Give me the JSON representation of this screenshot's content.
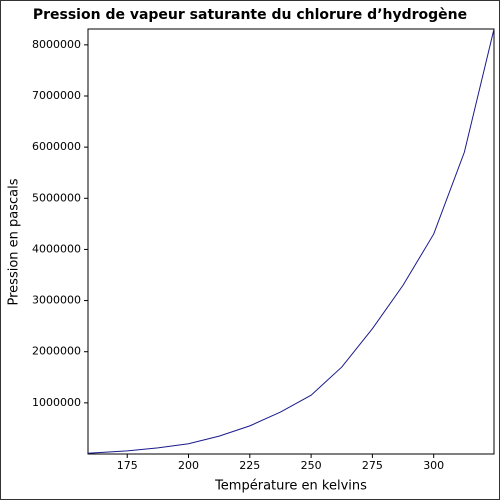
{
  "chart_data": {
    "type": "line",
    "title": "Pression de vapeur saturante du chlorure d’hydrogène",
    "x_label": "Température en kelvins",
    "y_label": "Pression en pascals",
    "x": [
      159,
      175,
      187.5,
      200,
      212.5,
      225,
      237.5,
      250,
      262.5,
      275,
      287.5,
      300,
      312.5,
      324.6
    ],
    "series": [
      {
        "color": "#1a1a8c",
        "values": [
          14000,
          60000,
          120000,
          200000,
          350000,
          550000,
          820000,
          1150000,
          1700000,
          2450000,
          3300000,
          4300000,
          5900000,
          8310000
        ]
      }
    ],
    "xlim": [
      159,
      324.6
    ],
    "ylim": [
      0,
      8310000
    ],
    "xticks": [
      175,
      200,
      225,
      250,
      275,
      300
    ],
    "yticks": [
      1000000,
      2000000,
      3000000,
      4000000,
      5000000,
      6000000,
      7000000,
      8000000
    ]
  }
}
